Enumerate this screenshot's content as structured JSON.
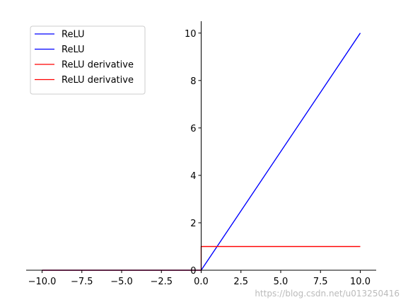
{
  "chart_data": {
    "type": "line",
    "title": "",
    "xlabel": "",
    "ylabel": "",
    "xlim": [
      -11,
      11
    ],
    "ylim": [
      0,
      10.5
    ],
    "xticks": [
      -10.0,
      -7.5,
      -5.0,
      -2.5,
      0.0,
      2.5,
      5.0,
      7.5,
      10.0
    ],
    "xtick_labels": [
      "−10.0",
      "−7.5",
      "−5.0",
      "−2.5",
      "0.0",
      "2.5",
      "5.0",
      "7.5",
      "10.0"
    ],
    "yticks": [
      0,
      2,
      4,
      6,
      8,
      10
    ],
    "ytick_labels": [
      "0",
      "2",
      "4",
      "6",
      "8",
      "10"
    ],
    "spines": "centered-at-origin",
    "grid": false,
    "legend_position": "upper-left",
    "series": [
      {
        "name": "ReLU",
        "color": "#0000ff",
        "x": [
          -10,
          0,
          10
        ],
        "y": [
          0,
          0,
          10
        ]
      },
      {
        "name": "ReLU",
        "color": "#0000ff",
        "x": [
          -10,
          0,
          10
        ],
        "y": [
          0,
          0,
          10
        ]
      },
      {
        "name": "ReLU derivative",
        "color": "#ff0000",
        "x": [
          -10,
          0,
          0,
          10
        ],
        "y": [
          0,
          0,
          1,
          1
        ]
      },
      {
        "name": "ReLU derivative",
        "color": "#ff0000",
        "x": [
          -10,
          0,
          0,
          10
        ],
        "y": [
          0,
          0,
          1,
          1
        ]
      }
    ]
  },
  "watermark": "https://blog.csdn.net/u013250416"
}
